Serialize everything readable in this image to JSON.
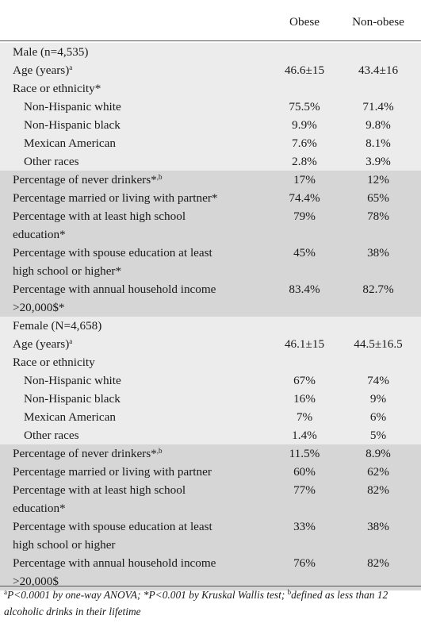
{
  "header": {
    "col_obese": "Obese",
    "col_nonobese": "Non-obese"
  },
  "male": {
    "group": "Male (n=4,535)",
    "age": {
      "label": "Age (years)",
      "sup": "a",
      "obese": "46.6±15",
      "nonobese": "43.4±16"
    },
    "race_label": "Race or ethnicity*",
    "races": [
      {
        "label": "Non-Hispanic white",
        "obese": "75.5%",
        "nonobese": "71.4%"
      },
      {
        "label": "Non-Hispanic black",
        "obese": "9.9%",
        "nonobese": "9.8%"
      },
      {
        "label": "Mexican American",
        "obese": "7.6%",
        "nonobese": "8.1%"
      },
      {
        "label": "Other races",
        "obese": "2.8%",
        "nonobese": "3.9%"
      }
    ],
    "never_drinkers": {
      "label": "Percentage of never drinkers*",
      "sup": ",b",
      "obese": "17%",
      "nonobese": "12%"
    },
    "married": {
      "label": "Percentage married or living with partner*",
      "obese": "74.4%",
      "nonobese": "65%"
    },
    "high_school": {
      "line1": "Percentage with at least high school",
      "line2": "education*",
      "obese": "79%",
      "nonobese": "78%"
    },
    "spouse_edu": {
      "line1": "Percentage with spouse education at least",
      "line2": "high school or higher*",
      "obese": "45%",
      "nonobese": "38%"
    },
    "income": {
      "line1": "Percentage with annual household income",
      "line2": ">20,000$*",
      "obese": "83.4%",
      "nonobese": "82.7%"
    }
  },
  "female": {
    "group": "Female (N=4,658)",
    "age": {
      "label": "Age (years)",
      "sup": "a",
      "obese": "46.1±15",
      "nonobese": "44.5±16.5"
    },
    "race_label": "Race or ethnicity",
    "races": [
      {
        "label": "Non-Hispanic white",
        "obese": "67%",
        "nonobese": "74%"
      },
      {
        "label": "Non-Hispanic black",
        "obese": "16%",
        "nonobese": "9%"
      },
      {
        "label": "Mexican American",
        "obese": "7%",
        "nonobese": "6%"
      },
      {
        "label": "Other races",
        "obese": "1.4%",
        "nonobese": "5%"
      }
    ],
    "never_drinkers": {
      "label": "Percentage of never drinkers*",
      "sup": ",b",
      "obese": "11.5%",
      "nonobese": "8.9%"
    },
    "married": {
      "label": "Percentage married or living with partner",
      "obese": "60%",
      "nonobese": "62%"
    },
    "high_school": {
      "line1": "Percentage with at least high school",
      "line2": "education*",
      "obese": "77%",
      "nonobese": "82%"
    },
    "spouse_edu": {
      "line1": "Percentage with spouse education at least",
      "line2": "high school or higher",
      "obese": "33%",
      "nonobese": "38%"
    },
    "income": {
      "line1": "Percentage with annual household income",
      "line2": ">20,000$",
      "obese": "76%",
      "nonobese": "82%"
    }
  },
  "footnote": {
    "sup_a": "a",
    "text_a": "P<0.0001 by one-way ANOVA; *P<0.001 by Kruskal Wallis test; ",
    "sup_b": "b",
    "text_b": "defined as less than 12 alcoholic drinks in their lifetime"
  }
}
